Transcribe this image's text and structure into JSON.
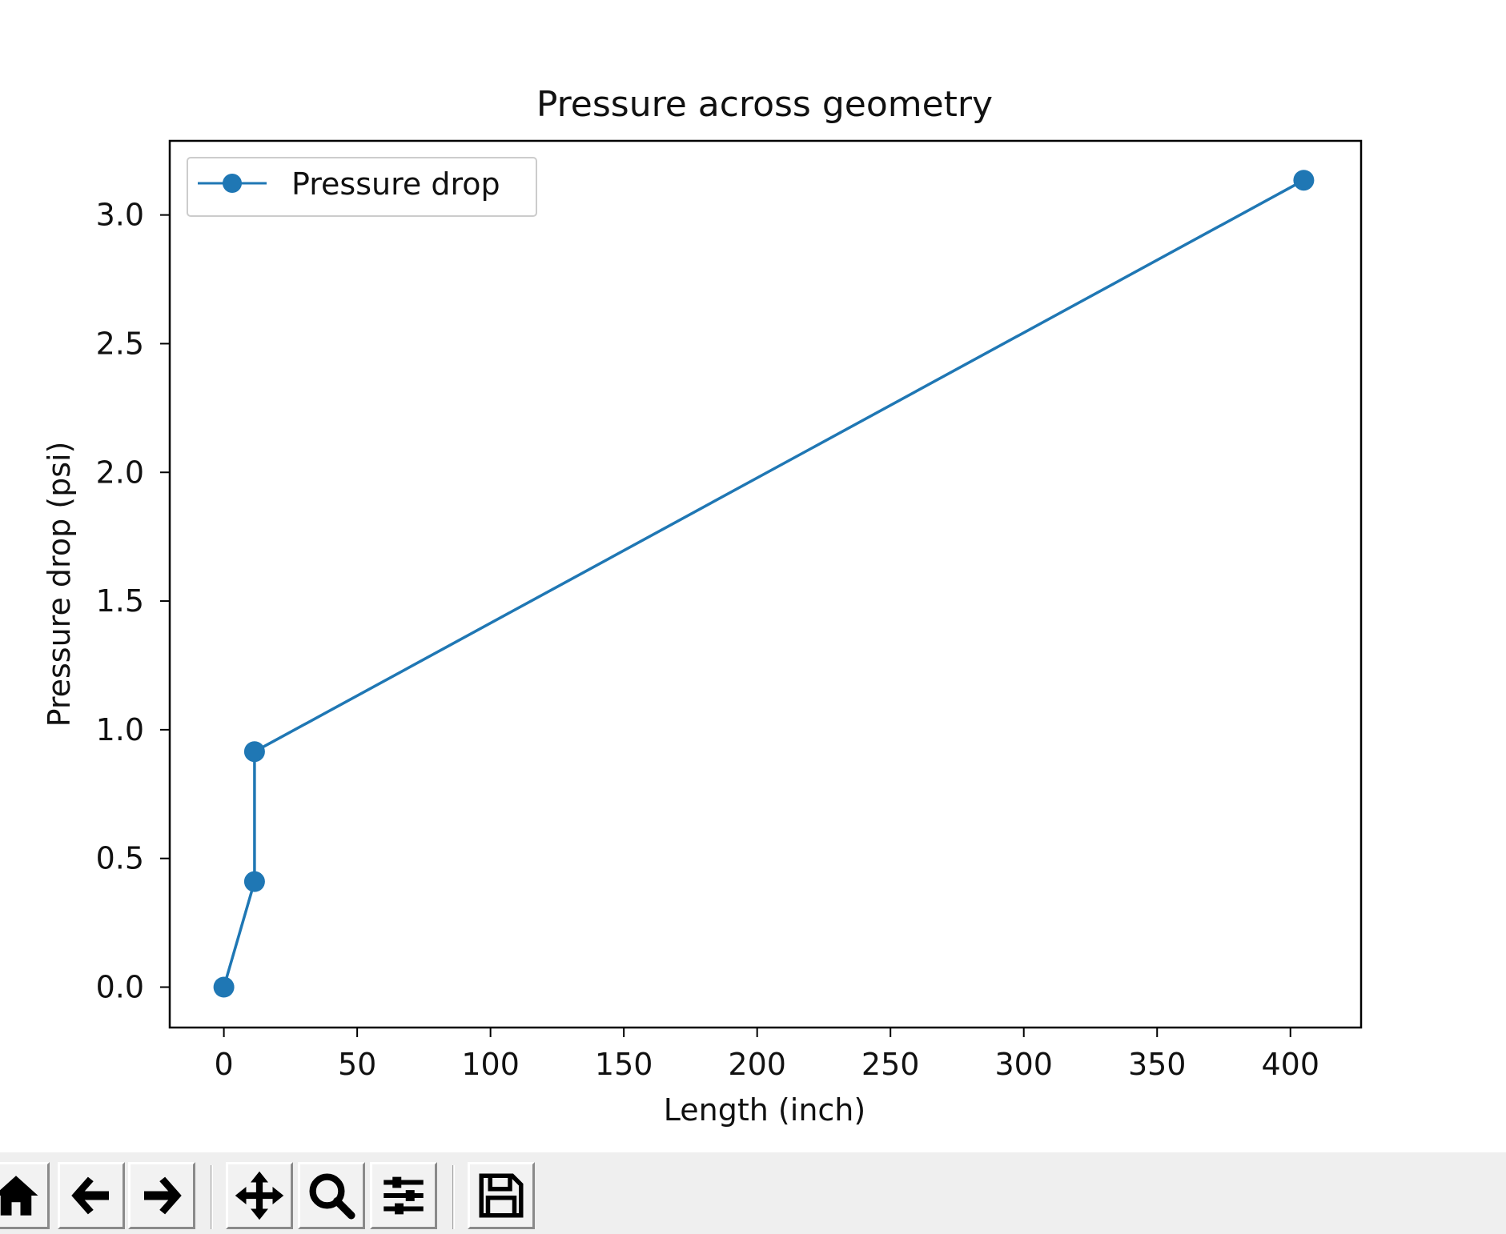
{
  "chart_data": {
    "type": "line",
    "title": "Pressure across geometry",
    "xlabel": "Length (inch)",
    "ylabel": "Pressure drop (psi)",
    "xlim": [
      -20.3,
      426.5
    ],
    "ylim": [
      -0.157,
      3.288
    ],
    "xticks": [
      0,
      50,
      100,
      150,
      200,
      250,
      300,
      350,
      400
    ],
    "xtick_labels": [
      "0",
      "50",
      "100",
      "150",
      "200",
      "250",
      "300",
      "350",
      "400"
    ],
    "yticks": [
      0.0,
      0.5,
      1.0,
      1.5,
      2.0,
      2.5,
      3.0
    ],
    "ytick_labels": [
      "0.0",
      "0.5",
      "1.0",
      "1.5",
      "2.0",
      "2.5",
      "3.0"
    ],
    "grid": false,
    "legend_position": "upper-left",
    "series": [
      {
        "name": "Pressure drop",
        "color": "#1f77b4",
        "marker": "circle",
        "x": [
          0,
          11.5,
          11.5,
          405
        ],
        "y": [
          0.0,
          0.41,
          0.915,
          3.135
        ]
      }
    ]
  },
  "toolbar": {
    "buttons": [
      {
        "name": "home-button",
        "icon": "home-icon"
      },
      {
        "name": "back-button",
        "icon": "arrow-left-icon"
      },
      {
        "name": "forward-button",
        "icon": "arrow-right-icon"
      },
      {
        "name": "pan-button",
        "icon": "move-icon"
      },
      {
        "name": "zoom-button",
        "icon": "magnifier-icon"
      },
      {
        "name": "configure-subplots-button",
        "icon": "sliders-icon"
      },
      {
        "name": "save-button",
        "icon": "floppy-disk-icon"
      }
    ]
  }
}
